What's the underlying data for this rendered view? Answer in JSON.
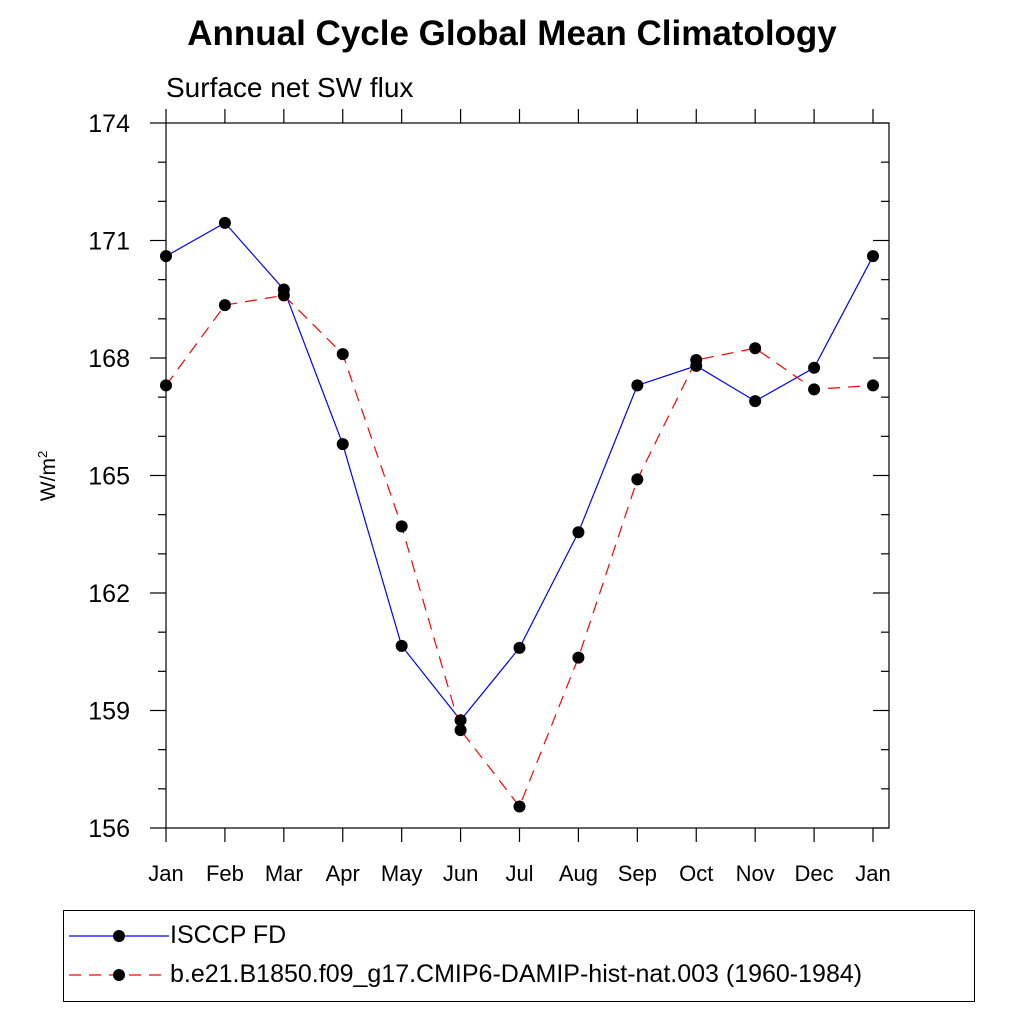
{
  "title": "Annual Cycle Global Mean Climatology",
  "subtitle": "Surface net SW flux",
  "ylabel_main": "W/m",
  "ylabel_sup": "2",
  "colors": {
    "series1": "#0000ff",
    "series2": "#ff0000",
    "marker": "#000000"
  },
  "chart_data": {
    "type": "line",
    "categories": [
      "Jan",
      "Feb",
      "Mar",
      "Apr",
      "May",
      "Jun",
      "Jul",
      "Aug",
      "Sep",
      "Oct",
      "Nov",
      "Dec",
      "Jan"
    ],
    "ylim": [
      156,
      174
    ],
    "yticks": [
      156,
      159,
      162,
      165,
      168,
      171,
      174
    ],
    "ytick_labels": [
      "156",
      "159",
      "162",
      "165",
      "168",
      "171",
      "174"
    ],
    "legend_position": "bottom",
    "series": [
      {
        "name": "ISCCP FD",
        "style": "solid",
        "values": [
          170.6,
          171.45,
          169.75,
          165.8,
          160.65,
          158.75,
          160.6,
          163.55,
          167.3,
          167.8,
          166.9,
          167.75,
          170.6
        ]
      },
      {
        "name": "b.e21.B1850.f09_g17.CMIP6-DAMIP-hist-nat.003 (1960-1984)",
        "style": "dashed",
        "values": [
          167.3,
          169.35,
          169.6,
          168.1,
          163.7,
          158.5,
          156.55,
          160.35,
          164.9,
          167.95,
          168.25,
          167.2,
          167.3
        ]
      }
    ]
  }
}
